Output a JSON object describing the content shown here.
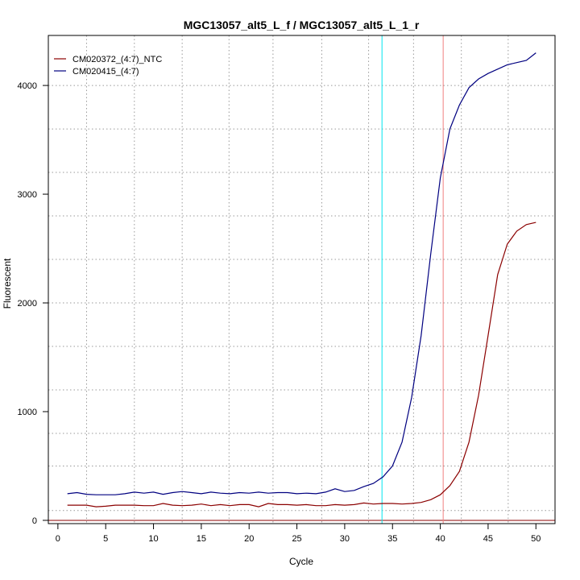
{
  "chart_data": {
    "type": "line",
    "title": "MGC13057_alt5_L_f / MGC13057_alt5_L_1_r",
    "xlabel": "Cycle",
    "ylabel": "Fluorescent",
    "xlim": [
      -1.0,
      52.0
    ],
    "ylim": [
      -30,
      4460
    ],
    "x_ticks": [
      0,
      5,
      10,
      15,
      20,
      25,
      30,
      35,
      40,
      45,
      50
    ],
    "y_ticks": [
      0,
      1000,
      2000,
      3000,
      4000
    ],
    "grid": true,
    "legend_position": "top-left",
    "vgrid_x": [
      3,
      8,
      13,
      17.9,
      22.5,
      27.6,
      32.5,
      37.2,
      42.2,
      47.1
    ],
    "hgrid_y": [
      90,
      500,
      800,
      1200,
      1600,
      2000,
      2400,
      2800,
      3200,
      3600,
      4000
    ],
    "thresholds": {
      "horizontal_y": 0,
      "vertical_cyan_x": 33.9,
      "vertical_pink_x": 40.3
    },
    "x": [
      1,
      2,
      3,
      4,
      5,
      6,
      7,
      8,
      9,
      10,
      11,
      12,
      13,
      14,
      15,
      16,
      17,
      18,
      19,
      20,
      21,
      22,
      23,
      24,
      25,
      26,
      27,
      28,
      29,
      30,
      31,
      32,
      33,
      34,
      35,
      36,
      37,
      38,
      39,
      40,
      41,
      42,
      43,
      44,
      45,
      46,
      47,
      48,
      49,
      50
    ],
    "series": [
      {
        "name": "CM020372_(4:7)_NTC",
        "color": "#8b0000",
        "values": [
          140,
          140,
          140,
          125,
          130,
          140,
          140,
          140,
          135,
          135,
          155,
          140,
          135,
          140,
          150,
          135,
          145,
          135,
          145,
          145,
          125,
          155,
          145,
          145,
          140,
          145,
          135,
          135,
          145,
          140,
          145,
          160,
          150,
          155,
          155,
          150,
          155,
          165,
          190,
          235,
          320,
          450,
          720,
          1150,
          1700,
          2260,
          2540,
          2660,
          2720,
          2740
        ]
      },
      {
        "name": "CM020415_(4:7)",
        "color": "#000080",
        "values": [
          245,
          255,
          240,
          235,
          235,
          235,
          245,
          260,
          250,
          260,
          240,
          255,
          265,
          255,
          245,
          260,
          250,
          245,
          255,
          250,
          260,
          250,
          255,
          255,
          245,
          250,
          245,
          260,
          290,
          265,
          275,
          310,
          340,
          400,
          500,
          720,
          1130,
          1700,
          2450,
          3150,
          3600,
          3820,
          3980,
          4060,
          4110,
          4150,
          4190,
          4210,
          4230,
          4300
        ]
      }
    ]
  }
}
